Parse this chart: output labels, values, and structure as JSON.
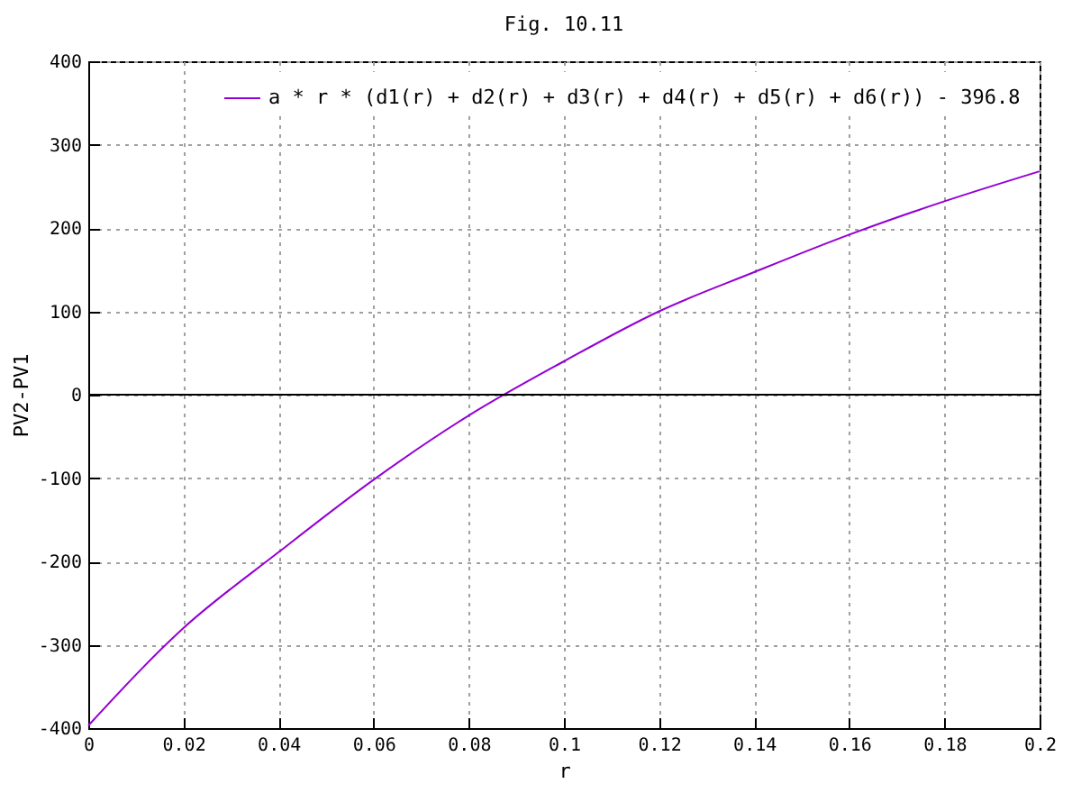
{
  "chart_data": {
    "type": "line",
    "title": "Fig. 10.11",
    "xlabel": "r",
    "ylabel": "PV2-PV1",
    "x": [
      0,
      0.02,
      0.04,
      0.06,
      0.08,
      0.1,
      0.12,
      0.14,
      0.16,
      0.18,
      0.2
    ],
    "series": [
      {
        "name": "a * r * (d1(r) + d2(r) + d3(r) + d4(r) + d5(r) + d6(r)) - 396.8",
        "color": "#9400d3",
        "values": [
          -397,
          -280,
          -189,
          -102,
          -25,
          40,
          100,
          147,
          192,
          232,
          268
        ]
      }
    ],
    "xlim": [
      0,
      0.2
    ],
    "xticks": [
      0,
      0.02,
      0.04,
      0.06,
      0.08,
      0.1,
      0.12,
      0.14,
      0.16,
      0.18,
      0.2
    ],
    "ylim": [
      -400,
      400
    ],
    "yticks": [
      -400,
      -300,
      -200,
      -100,
      0,
      100,
      200,
      300,
      400
    ],
    "grid": true,
    "legend": "top right",
    "marker": "none",
    "line_style": "solid",
    "ref_lines": [
      {
        "axis": "y",
        "value": 0,
        "color": "#000000"
      }
    ]
  }
}
